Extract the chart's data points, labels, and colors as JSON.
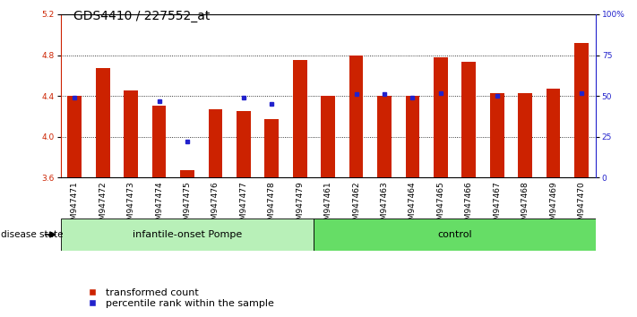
{
  "title": "GDS4410 / 227552_at",
  "samples": [
    "GSM947471",
    "GSM947472",
    "GSM947473",
    "GSM947474",
    "GSM947475",
    "GSM947476",
    "GSM947477",
    "GSM947478",
    "GSM947479",
    "GSM947461",
    "GSM947462",
    "GSM947463",
    "GSM947464",
    "GSM947465",
    "GSM947466",
    "GSM947467",
    "GSM947468",
    "GSM947469",
    "GSM947470"
  ],
  "red_values": [
    4.4,
    4.67,
    4.45,
    4.3,
    3.67,
    4.27,
    4.25,
    4.17,
    4.75,
    4.4,
    4.8,
    4.4,
    4.4,
    4.78,
    4.73,
    4.43,
    4.43,
    4.47,
    4.92
  ],
  "blue_values": [
    4.38,
    null,
    null,
    4.35,
    3.95,
    null,
    4.38,
    4.32,
    null,
    null,
    4.42,
    4.42,
    4.38,
    4.43,
    null,
    4.4,
    null,
    null,
    4.43
  ],
  "group_labels": [
    "infantile-onset Pompe",
    "control"
  ],
  "group_sizes": [
    9,
    10
  ],
  "ylim": [
    3.6,
    5.2
  ],
  "yticks": [
    3.6,
    4.0,
    4.4,
    4.8,
    5.2
  ],
  "right_yticks": [
    0,
    25,
    50,
    75,
    100
  ],
  "right_ytick_labels": [
    "0",
    "25",
    "50",
    "75",
    "100%"
  ],
  "bar_color": "#CC2200",
  "blue_color": "#2222CC",
  "label_transformed": "transformed count",
  "label_percentile": "percentile rank within the sample",
  "disease_state_label": "disease state",
  "title_fontsize": 10,
  "tick_fontsize": 6.5,
  "base": 3.6,
  "group_colors": [
    "#b8f0b8",
    "#66dd66"
  ]
}
